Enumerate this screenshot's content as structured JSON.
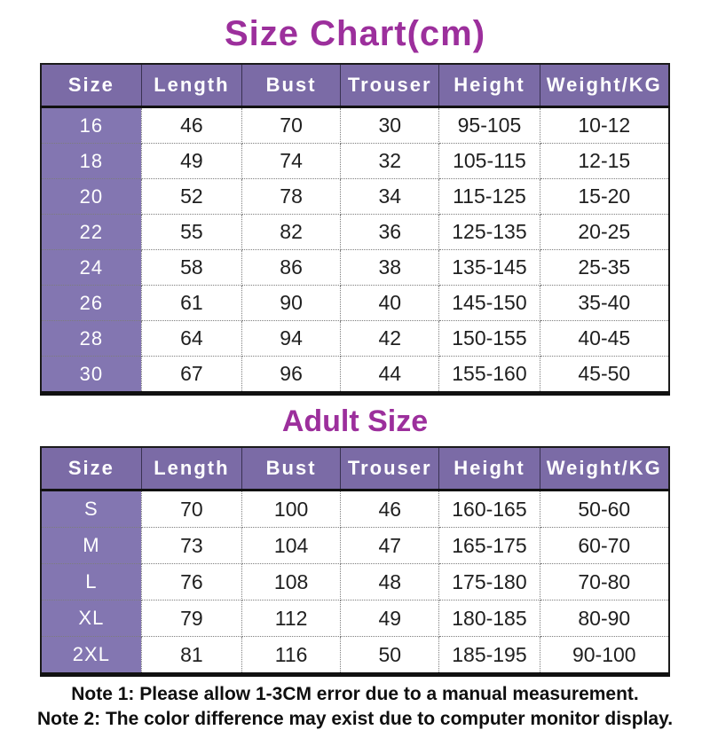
{
  "page": {
    "title": "Size Chart(cm)",
    "adult_title": "Adult Size",
    "notes": [
      "Note 1: Please allow 1-3CM error due to a manual measurement.",
      "Note 2: The color difference may exist due to computer monitor display."
    ],
    "colors": {
      "title_text": "#9c2f9c",
      "header_bg": "#7b6ba6",
      "size_col_bg": "#8376b1",
      "header_text": "#ffffff",
      "cell_text": "#1f1f1f",
      "border_dark": "#1b1b1b"
    }
  },
  "kids_table": {
    "headers": [
      "Size",
      "Length",
      "Bust",
      "Trouser",
      "Height",
      "Weight/KG"
    ],
    "rows": [
      [
        "16",
        "46",
        "70",
        "30",
        "95-105",
        "10-12"
      ],
      [
        "18",
        "49",
        "74",
        "32",
        "105-115",
        "12-15"
      ],
      [
        "20",
        "52",
        "78",
        "34",
        "115-125",
        "15-20"
      ],
      [
        "22",
        "55",
        "82",
        "36",
        "125-135",
        "20-25"
      ],
      [
        "24",
        "58",
        "86",
        "38",
        "135-145",
        "25-35"
      ],
      [
        "26",
        "61",
        "90",
        "40",
        "145-150",
        "35-40"
      ],
      [
        "28",
        "64",
        "94",
        "42",
        "150-155",
        "40-45"
      ],
      [
        "30",
        "67",
        "96",
        "44",
        "155-160",
        "45-50"
      ]
    ]
  },
  "adult_table": {
    "headers": [
      "Size",
      "Length",
      "Bust",
      "Trouser",
      "Height",
      "Weight/KG"
    ],
    "rows": [
      [
        "S",
        "70",
        "100",
        "46",
        "160-165",
        "50-60"
      ],
      [
        "M",
        "73",
        "104",
        "47",
        "165-175",
        "60-70"
      ],
      [
        "L",
        "76",
        "108",
        "48",
        "175-180",
        "70-80"
      ],
      [
        "XL",
        "79",
        "112",
        "49",
        "180-185",
        "80-90"
      ],
      [
        "2XL",
        "81",
        "116",
        "50",
        "185-195",
        "90-100"
      ]
    ]
  }
}
